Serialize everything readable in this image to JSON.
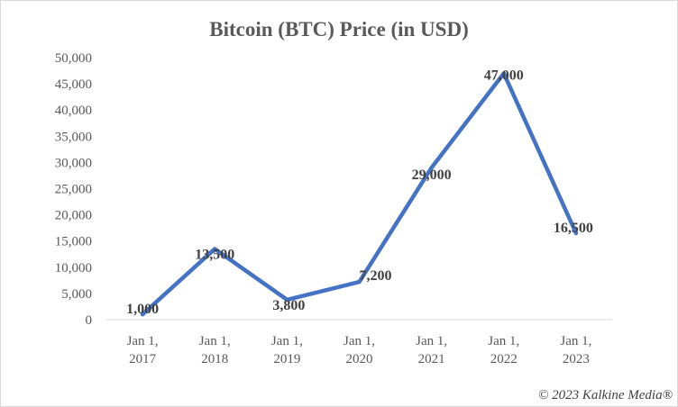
{
  "chart_data": {
    "type": "line",
    "title": "Bitcoin (BTC) Price (in USD)",
    "xlabel": "",
    "ylabel": "",
    "categories": [
      [
        "Jan 1,",
        "2017"
      ],
      [
        "Jan 1,",
        "2018"
      ],
      [
        "Jan 1,",
        "2019"
      ],
      [
        "Jan 1,",
        "2020"
      ],
      [
        "Jan 1,",
        "2021"
      ],
      [
        "Jan 1,",
        "2022"
      ],
      [
        "Jan 1,",
        "2023"
      ]
    ],
    "values": [
      1000,
      13500,
      3800,
      7200,
      29000,
      47000,
      16500
    ],
    "data_labels": [
      "1,000",
      "13,500",
      "3,800",
      "7,200",
      "29,000",
      "47,000",
      "16,500"
    ],
    "yticks": [
      "0",
      "5,000",
      "10,000",
      "15,000",
      "20,000",
      "25,000",
      "30,000",
      "35,000",
      "40,000",
      "45,000",
      "50,000"
    ],
    "ylim": [
      0,
      50000
    ],
    "grid": false,
    "legend": "none",
    "line_color": "#4472c4"
  },
  "credit": "© 2023 Kalkine Media®"
}
